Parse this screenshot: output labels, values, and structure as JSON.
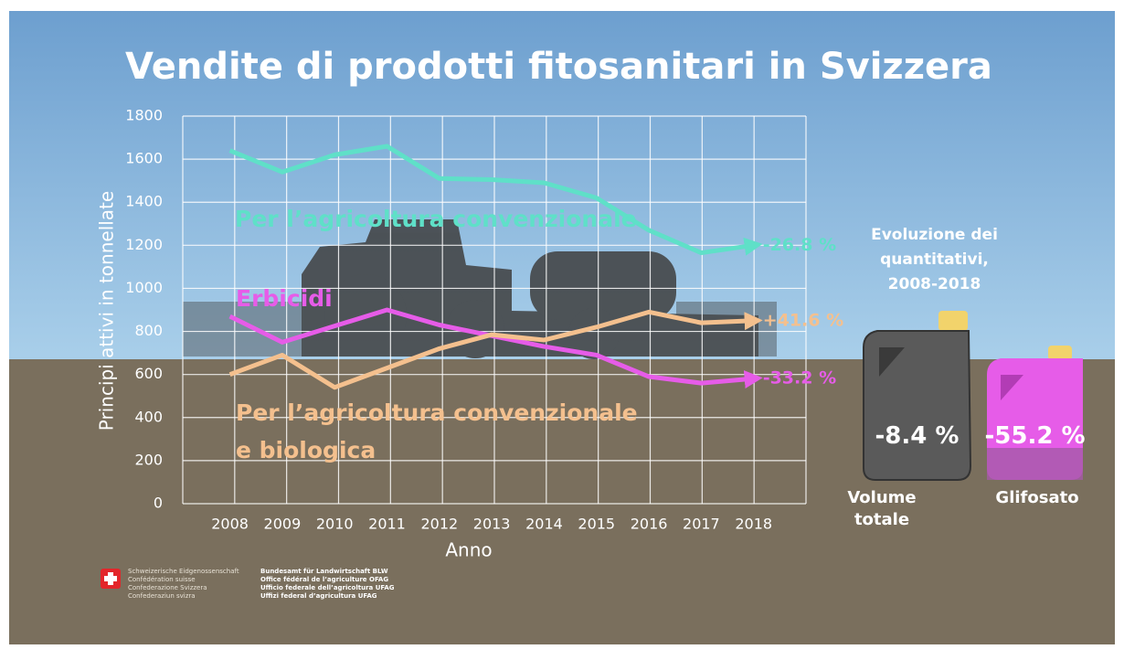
{
  "chart_data": {
    "type": "line",
    "title": "Vendite di prodotti fitosanitari in Svizzera",
    "x_label": "Anno",
    "y_label": "Principi attivi in tonnellate",
    "categories": [
      "2008",
      "2009",
      "2010",
      "2011",
      "2012",
      "2013",
      "2014",
      "2015",
      "2016",
      "2017",
      "2018"
    ],
    "series": [
      {
        "name": "Per l’agricoltura convenzionale",
        "color": "#5fe0c8",
        "values": [
          1640,
          1540,
          1620,
          1660,
          1510,
          1505,
          1490,
          1420,
          1270,
          1165,
          1200
        ],
        "end_label": "-26.8 %"
      },
      {
        "name": "Erbicidi",
        "color": "#e65ce8",
        "values": [
          870,
          750,
          825,
          900,
          830,
          780,
          730,
          690,
          590,
          560,
          581
        ],
        "end_label": "-33.2 %"
      },
      {
        "name": "Per l’agricoltura convenzionale e biologica",
        "color": "#f4c08e",
        "values": [
          600,
          690,
          540,
          630,
          720,
          785,
          760,
          820,
          890,
          840,
          850
        ],
        "end_label": "+41.6 %"
      }
    ],
    "ylim": [
      0,
      1800
    ],
    "yticks": [
      0,
      200,
      400,
      600,
      800,
      1000,
      1200,
      1400,
      1600,
      1800
    ],
    "grid": true
  },
  "summary": {
    "title": "Evoluzione dei quantitativi, 2008-2018",
    "items": [
      {
        "label": "Volume totale",
        "change": "-8.4 %"
      },
      {
        "label": "Glifosato",
        "change": "-55.2 %"
      }
    ]
  },
  "footer": {
    "confederation": [
      "Schweizerische Eidgenossenschaft",
      "Confédération suisse",
      "Confederazione Svizzera",
      "Confederaziun svizra"
    ],
    "office": [
      "Bundesamt für Landwirtschaft BLW",
      "Office fédéral de l’agriculture OFAG",
      "Ufficio federale dell’agricoltura UFAG",
      "Uffizi federal d’agricultura UFAG"
    ]
  }
}
